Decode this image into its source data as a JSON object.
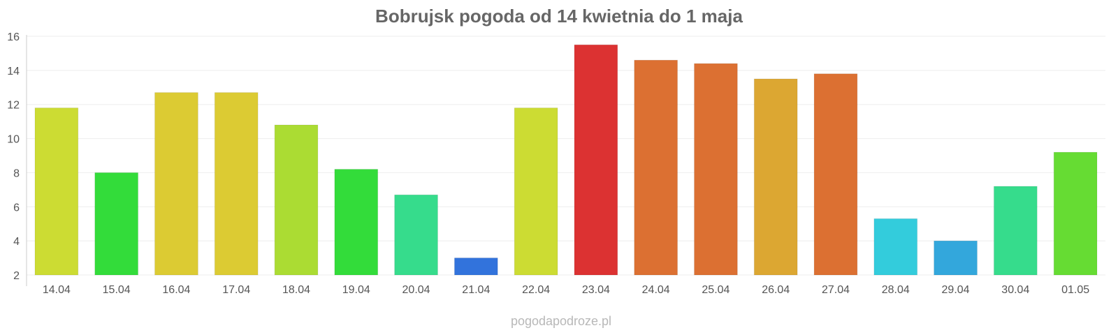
{
  "chart_data": {
    "type": "bar",
    "title": "Bobrujsk pogoda od 14 kwietnia do 1 maja",
    "xlabel": "",
    "ylabel": "",
    "ylim": [
      2,
      16
    ],
    "yticks": [
      2,
      4,
      6,
      8,
      10,
      12,
      14,
      16
    ],
    "grid": true,
    "categories": [
      "14.04",
      "15.04",
      "16.04",
      "17.04",
      "18.04",
      "19.04",
      "20.04",
      "21.04",
      "22.04",
      "23.04",
      "24.04",
      "25.04",
      "26.04",
      "27.04",
      "28.04",
      "29.04",
      "30.04",
      "01.05"
    ],
    "values": [
      11.8,
      8.0,
      12.7,
      12.7,
      10.8,
      8.2,
      6.7,
      3.0,
      11.8,
      15.5,
      14.6,
      14.4,
      13.5,
      13.8,
      5.3,
      4.0,
      7.2,
      9.2
    ],
    "colors": [
      "#ccdc33",
      "#33dc3a",
      "#dccb33",
      "#dccb33",
      "#abdc33",
      "#33dc3a",
      "#36dc8c",
      "#3273dc",
      "#ccdc33",
      "#dc3232",
      "#dc7032",
      "#dc7032",
      "#dca732",
      "#dc7032",
      "#33ccdc",
      "#33a7dc",
      "#36dc8c",
      "#66dc33"
    ]
  },
  "watermark": "pogodapodroze.pl"
}
